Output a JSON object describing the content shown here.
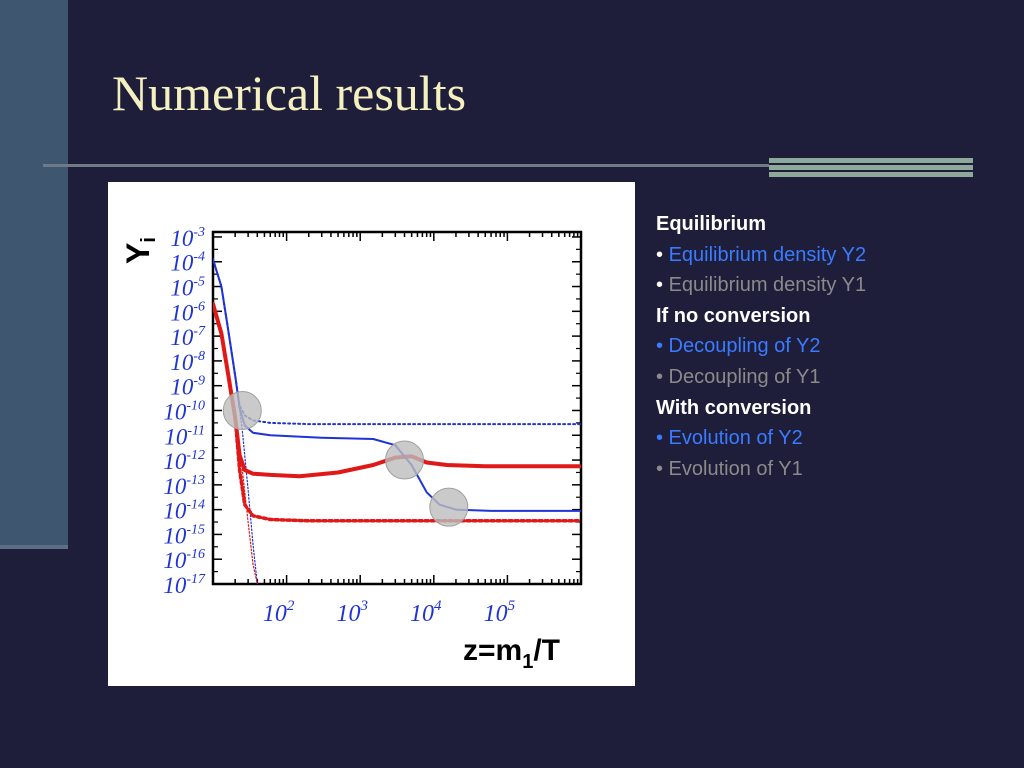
{
  "slide": {
    "title": "Numerical results"
  },
  "legend": {
    "items": [
      {
        "text": "Equilibrium",
        "style": "header"
      },
      {
        "bullet": "•",
        "text": "Equilibrium density Y2",
        "style": "blue"
      },
      {
        "bullet": "•",
        "text": "Equilibrium density Y1",
        "style": "gray"
      },
      {
        "text": "If no conversion",
        "style": "header"
      },
      {
        "text": "• Decoupling of Y2",
        "style": "blue"
      },
      {
        "text": "• Decoupling of Y1",
        "style": "gray"
      },
      {
        "text": "With conversion",
        "style": "header"
      },
      {
        "text": "• Evolution of Y2",
        "style": "blue"
      },
      {
        "text": "• Evolution of Y1",
        "style": "gray"
      }
    ]
  },
  "colors": {
    "background": "#1e1e3a",
    "title": "#f4f0c0",
    "blue_series": "#1f33d6",
    "red_series": "#e01818",
    "legend_blue": "#3a7bff",
    "legend_gray": "#8a8a8a"
  },
  "chart_data": {
    "type": "line",
    "xlabel": "z=m",
    "xlabel_sub": "1",
    "xlabel_tail": "/T",
    "ylabel": "Y",
    "ylabel_sub": "i",
    "x_scale": "log",
    "y_scale": "log",
    "xlim": [
      10,
      1000000
    ],
    "ylim_exp": [
      -17,
      -2.8
    ],
    "x_ticks": [
      {
        "value": 100,
        "base": "10",
        "exp": "2"
      },
      {
        "value": 1000,
        "base": "10",
        "exp": "3"
      },
      {
        "value": 10000,
        "base": "10",
        "exp": "4"
      },
      {
        "value": 100000,
        "base": "10",
        "exp": "5"
      }
    ],
    "y_ticks": [
      {
        "exp_value": -3,
        "base": "10",
        "exp": "-3"
      },
      {
        "exp_value": -4,
        "base": "10",
        "exp": "-4"
      },
      {
        "exp_value": -5,
        "base": "10",
        "exp": "-5"
      },
      {
        "exp_value": -6,
        "base": "10",
        "exp": "-6"
      },
      {
        "exp_value": -7,
        "base": "10",
        "exp": "-7"
      },
      {
        "exp_value": -8,
        "base": "10",
        "exp": "-8"
      },
      {
        "exp_value": -9,
        "base": "10",
        "exp": "-9"
      },
      {
        "exp_value": -10,
        "base": "10",
        "exp": "-10"
      },
      {
        "exp_value": -11,
        "base": "10",
        "exp": "-11"
      },
      {
        "exp_value": -12,
        "base": "10",
        "exp": "-12"
      },
      {
        "exp_value": -13,
        "base": "10",
        "exp": "-13"
      },
      {
        "exp_value": -14,
        "base": "10",
        "exp": "-14"
      },
      {
        "exp_value": -15,
        "base": "10",
        "exp": "-15"
      },
      {
        "exp_value": -16,
        "base": "10",
        "exp": "-16"
      },
      {
        "exp_value": -17,
        "base": "10",
        "exp": "-17"
      }
    ],
    "series": [
      {
        "id": "eq-y2",
        "color": "#1f33d6",
        "style": "dotted-thin",
        "points": [
          [
            10,
            -3.9
          ],
          [
            13,
            -5.0
          ],
          [
            16,
            -6.7
          ],
          [
            20,
            -8.6
          ],
          [
            25,
            -10.8
          ],
          [
            30,
            -13.2
          ],
          [
            35,
            -15.4
          ],
          [
            40,
            -17.0
          ]
        ]
      },
      {
        "id": "eq-y1",
        "color": "#e01818",
        "style": "dotted-thin",
        "points": [
          [
            10,
            -5.7
          ],
          [
            13,
            -6.9
          ],
          [
            16,
            -8.5
          ],
          [
            20,
            -10.3
          ],
          [
            25,
            -12.4
          ],
          [
            30,
            -14.5
          ],
          [
            35,
            -16.2
          ],
          [
            40,
            -17.0
          ]
        ]
      },
      {
        "id": "dec-y2",
        "color": "#1f33d6",
        "style": "dotted",
        "points": [
          [
            10,
            -3.9
          ],
          [
            13,
            -5.0
          ],
          [
            16,
            -6.7
          ],
          [
            20,
            -8.6
          ],
          [
            23,
            -9.8
          ],
          [
            27,
            -10.2
          ],
          [
            35,
            -10.4
          ],
          [
            60,
            -10.5
          ],
          [
            200,
            -10.55
          ],
          [
            1000000,
            -10.55
          ]
        ]
      },
      {
        "id": "dec-y1",
        "color": "#e01818",
        "style": "dotted-thick",
        "points": [
          [
            10,
            -5.7
          ],
          [
            13,
            -6.9
          ],
          [
            16,
            -8.5
          ],
          [
            20,
            -10.3
          ],
          [
            23,
            -12.4
          ],
          [
            27,
            -13.8
          ],
          [
            35,
            -14.25
          ],
          [
            60,
            -14.4
          ],
          [
            200,
            -14.45
          ],
          [
            1000000,
            -14.45
          ]
        ]
      },
      {
        "id": "evo-y2",
        "color": "#1f33d6",
        "style": "solid",
        "points": [
          [
            10,
            -3.9
          ],
          [
            13,
            -5.0
          ],
          [
            16,
            -6.7
          ],
          [
            20,
            -8.6
          ],
          [
            23,
            -9.9
          ],
          [
            27,
            -10.6
          ],
          [
            35,
            -10.9
          ],
          [
            60,
            -11.0
          ],
          [
            300,
            -11.1
          ],
          [
            1500,
            -11.15
          ],
          [
            3000,
            -11.4
          ],
          [
            5000,
            -12.2
          ],
          [
            8000,
            -13.3
          ],
          [
            12000,
            -13.8
          ],
          [
            20000,
            -14.0
          ],
          [
            60000,
            -14.05
          ],
          [
            1000000,
            -14.05
          ]
        ]
      },
      {
        "id": "evo-y1",
        "color": "#e01818",
        "style": "solid-thick",
        "points": [
          [
            10,
            -5.7
          ],
          [
            13,
            -6.9
          ],
          [
            16,
            -8.5
          ],
          [
            20,
            -10.3
          ],
          [
            23,
            -11.8
          ],
          [
            27,
            -12.4
          ],
          [
            35,
            -12.55
          ],
          [
            60,
            -12.6
          ],
          [
            150,
            -12.65
          ],
          [
            500,
            -12.5
          ],
          [
            1500,
            -12.2
          ],
          [
            3000,
            -11.9
          ],
          [
            5000,
            -11.85
          ],
          [
            8000,
            -12.1
          ],
          [
            15000,
            -12.2
          ],
          [
            50000,
            -12.25
          ],
          [
            1000000,
            -12.25
          ]
        ]
      }
    ],
    "markers": [
      {
        "x": 25,
        "y_exp": -10.0
      },
      {
        "x": 4000,
        "y_exp": -12.0
      },
      {
        "x": 16000,
        "y_exp": -13.9
      }
    ]
  }
}
